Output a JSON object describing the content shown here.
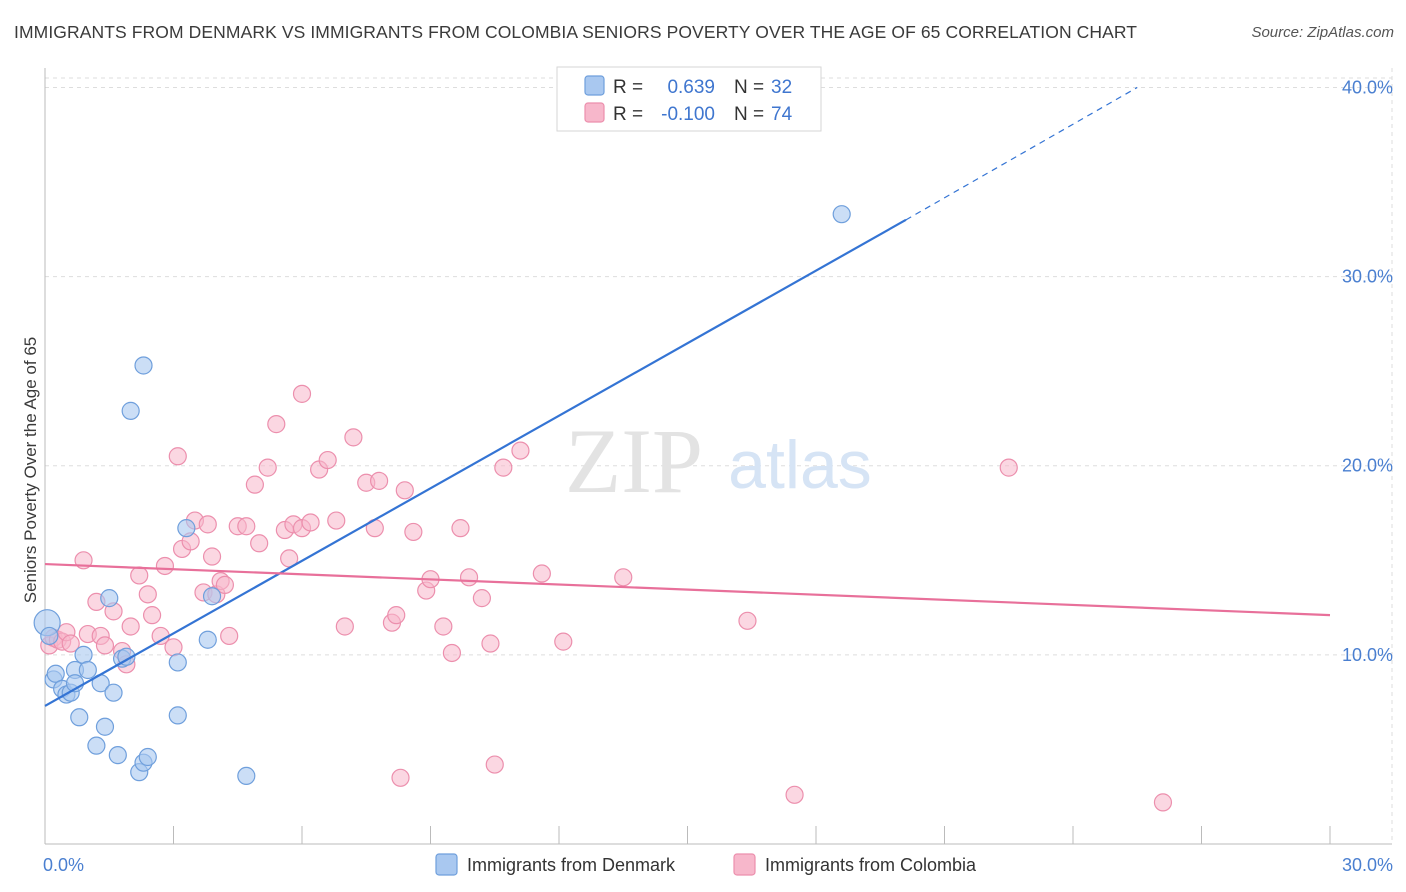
{
  "title": "IMMIGRANTS FROM DENMARK VS IMMIGRANTS FROM COLOMBIA SENIORS POVERTY OVER THE AGE OF 65 CORRELATION CHART",
  "source": "Source: ZipAtlas.com",
  "watermark": {
    "zip": "ZIP",
    "atlas": "atlas"
  },
  "colors": {
    "denmark_fill": "#a9c8f0",
    "denmark_stroke": "#6f9fdc",
    "denmark_line": "#3474d4",
    "colombia_fill": "#f7b7cb",
    "colombia_stroke": "#ec8fad",
    "colombia_line": "#e8709a",
    "grid": "#dddddd",
    "tick_text": "#4a7fd0"
  },
  "chart_data": {
    "type": "scatter",
    "title": "IMMIGRANTS FROM DENMARK VS IMMIGRANTS FROM COLOMBIA SENIORS POVERTY OVER THE AGE OF 65 CORRELATION CHART",
    "xlabel": "",
    "ylabel": "Seniors Poverty Over the Age of 65",
    "xlim": [
      0,
      30
    ],
    "ylim": [
      0,
      40.5
    ],
    "x_tick_labels": [
      "0.0%",
      "30.0%"
    ],
    "y_ticks": [
      10,
      20,
      30,
      40
    ],
    "y_tick_labels": [
      "10.0%",
      "20.0%",
      "30.0%",
      "40.0%"
    ],
    "grid": true,
    "legend": {
      "position": "top-center",
      "rows": [
        {
          "r_label": "R =",
          "r_value": "0.639",
          "n_label": "N =",
          "n_value": "32"
        },
        {
          "r_label": "R =",
          "r_value": "-0.100",
          "n_label": "N =",
          "n_value": "74"
        }
      ]
    },
    "series": [
      {
        "name": "Immigrants from Denmark",
        "trend": {
          "x0": 0,
          "y0": 7.3,
          "x1": 20.1,
          "y1": 33.0,
          "dash_x1": 25.5,
          "dash_y1": 40.0
        },
        "points": [
          [
            0.05,
            11.7
          ],
          [
            0.1,
            11.0
          ],
          [
            0.2,
            8.7
          ],
          [
            0.25,
            9.0
          ],
          [
            0.4,
            8.2
          ],
          [
            0.5,
            7.9
          ],
          [
            0.6,
            8.0
          ],
          [
            0.7,
            9.2
          ],
          [
            0.7,
            8.5
          ],
          [
            0.8,
            6.7
          ],
          [
            0.9,
            10.0
          ],
          [
            1.0,
            9.2
          ],
          [
            1.2,
            5.2
          ],
          [
            1.3,
            8.5
          ],
          [
            1.4,
            6.2
          ],
          [
            1.5,
            13.0
          ],
          [
            1.6,
            8.0
          ],
          [
            1.7,
            4.7
          ],
          [
            1.8,
            9.8
          ],
          [
            1.9,
            9.9
          ],
          [
            2.0,
            22.9
          ],
          [
            2.2,
            3.8
          ],
          [
            2.3,
            4.3
          ],
          [
            2.3,
            25.3
          ],
          [
            2.4,
            4.6
          ],
          [
            3.1,
            9.6
          ],
          [
            3.1,
            6.8
          ],
          [
            3.3,
            16.7
          ],
          [
            3.8,
            10.8
          ],
          [
            3.9,
            13.1
          ],
          [
            4.7,
            3.6
          ],
          [
            18.6,
            33.3
          ]
        ]
      },
      {
        "name": "Immigrants from Colombia",
        "trend": {
          "x0": 0,
          "y0": 14.8,
          "x1": 30,
          "y1": 12.1
        },
        "points": [
          [
            0.1,
            10.5
          ],
          [
            0.2,
            10.9
          ],
          [
            0.3,
            10.8
          ],
          [
            0.4,
            10.7
          ],
          [
            0.5,
            11.2
          ],
          [
            0.6,
            10.6
          ],
          [
            0.9,
            15.0
          ],
          [
            1.0,
            11.1
          ],
          [
            1.2,
            12.8
          ],
          [
            1.3,
            11.0
          ],
          [
            1.4,
            10.5
          ],
          [
            1.6,
            12.3
          ],
          [
            1.8,
            10.2
          ],
          [
            1.9,
            9.5
          ],
          [
            2.0,
            11.5
          ],
          [
            2.2,
            14.2
          ],
          [
            2.4,
            13.2
          ],
          [
            2.5,
            12.1
          ],
          [
            2.7,
            11.0
          ],
          [
            2.8,
            14.7
          ],
          [
            3.0,
            10.4
          ],
          [
            3.1,
            20.5
          ],
          [
            3.2,
            15.6
          ],
          [
            3.4,
            16.0
          ],
          [
            3.5,
            17.1
          ],
          [
            3.7,
            13.3
          ],
          [
            3.8,
            16.9
          ],
          [
            3.9,
            15.2
          ],
          [
            4.0,
            13.2
          ],
          [
            4.1,
            13.9
          ],
          [
            4.2,
            13.7
          ],
          [
            4.3,
            11.0
          ],
          [
            4.5,
            16.8
          ],
          [
            4.7,
            16.8
          ],
          [
            4.9,
            19.0
          ],
          [
            5.0,
            15.9
          ],
          [
            5.2,
            19.9
          ],
          [
            5.4,
            22.2
          ],
          [
            5.6,
            16.6
          ],
          [
            5.7,
            15.1
          ],
          [
            5.8,
            16.9
          ],
          [
            6.0,
            16.7
          ],
          [
            6.0,
            23.8
          ],
          [
            6.2,
            17.0
          ],
          [
            6.4,
            19.8
          ],
          [
            6.6,
            20.3
          ],
          [
            6.8,
            17.1
          ],
          [
            7.0,
            11.5
          ],
          [
            7.2,
            21.5
          ],
          [
            7.5,
            19.1
          ],
          [
            7.7,
            16.7
          ],
          [
            7.8,
            19.2
          ],
          [
            8.1,
            11.7
          ],
          [
            8.2,
            12.1
          ],
          [
            8.3,
            3.5
          ],
          [
            8.4,
            18.7
          ],
          [
            8.6,
            16.5
          ],
          [
            8.9,
            13.4
          ],
          [
            9.0,
            14.0
          ],
          [
            9.3,
            11.5
          ],
          [
            9.5,
            10.1
          ],
          [
            9.7,
            16.7
          ],
          [
            9.9,
            14.1
          ],
          [
            10.2,
            13.0
          ],
          [
            10.4,
            10.6
          ],
          [
            10.5,
            4.2
          ],
          [
            10.7,
            19.9
          ],
          [
            11.1,
            20.8
          ],
          [
            11.6,
            14.3
          ],
          [
            12.1,
            10.7
          ],
          [
            13.5,
            14.1
          ],
          [
            16.4,
            11.8
          ],
          [
            17.5,
            2.6
          ],
          [
            22.5,
            19.9
          ],
          [
            26.1,
            2.2
          ]
        ]
      }
    ]
  },
  "bottom_legend": [
    "Immigrants from Denmark",
    "Immigrants from Colombia"
  ]
}
